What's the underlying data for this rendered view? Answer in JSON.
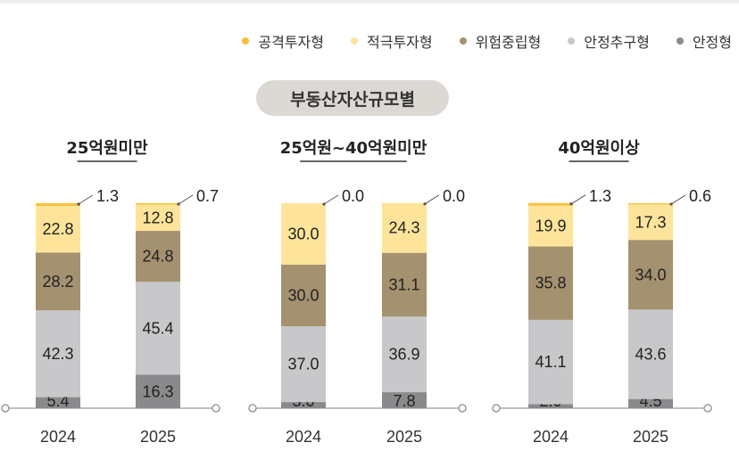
{
  "subtitle": "부동산자산규모별",
  "colors": {
    "공격투자형": "#f7c03c",
    "적극투자형": "#fde49a",
    "위험중립형": "#a4916f",
    "안정추구형": "#c8c8cb",
    "안정형": "#8a8a8d"
  },
  "chart_data": {
    "type": "bar",
    "stacked": true,
    "unit": "%",
    "legend": [
      "공격투자형",
      "적극투자형",
      "위험중립형",
      "안정추구형",
      "안정형"
    ],
    "legend_position": "top-right",
    "panels": [
      {
        "title": "25억원미만",
        "categories": [
          "2024",
          "2025"
        ],
        "series": [
          {
            "name": "안정형",
            "values": [
              5.4,
              16.3
            ]
          },
          {
            "name": "안정추구형",
            "values": [
              42.3,
              45.4
            ]
          },
          {
            "name": "위험중립형",
            "values": [
              28.2,
              24.8
            ]
          },
          {
            "name": "적극투자형",
            "values": [
              22.8,
              12.8
            ]
          },
          {
            "name": "공격투자형",
            "values": [
              1.3,
              0.7
            ]
          }
        ]
      },
      {
        "title": "25억원~40억원미만",
        "categories": [
          "2024",
          "2025"
        ],
        "series": [
          {
            "name": "안정형",
            "values": [
              3.0,
              7.8
            ]
          },
          {
            "name": "안정추구형",
            "values": [
              37.0,
              36.9
            ]
          },
          {
            "name": "위험중립형",
            "values": [
              30.0,
              31.1
            ]
          },
          {
            "name": "적극투자형",
            "values": [
              30.0,
              24.3
            ]
          },
          {
            "name": "공격투자형",
            "values": [
              0.0,
              0.0
            ]
          }
        ]
      },
      {
        "title": "40억원이상",
        "categories": [
          "2024",
          "2025"
        ],
        "series": [
          {
            "name": "안정형",
            "values": [
              2.0,
              4.5
            ]
          },
          {
            "name": "안정추구형",
            "values": [
              41.1,
              43.6
            ]
          },
          {
            "name": "위험중립형",
            "values": [
              35.8,
              34.0
            ]
          },
          {
            "name": "적극투자형",
            "values": [
              19.9,
              17.3
            ]
          },
          {
            "name": "공격투자형",
            "values": [
              1.3,
              0.6
            ]
          }
        ]
      }
    ]
  }
}
